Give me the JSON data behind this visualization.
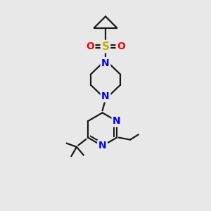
{
  "background_color": "#e8e8e8",
  "bond_color": "#1a1a1a",
  "nitrogen_color": "#0000ff",
  "oxygen_color": "#ff0000",
  "sulfur_color": "#ccaa00",
  "carbon_color": "#1a1a1a",
  "bond_width": 1.6,
  "font_size_atoms": 10,
  "fig_width": 3.0,
  "fig_height": 3.0,
  "dpi": 100,
  "xlim": [
    0,
    10
  ],
  "ylim": [
    0,
    10
  ]
}
